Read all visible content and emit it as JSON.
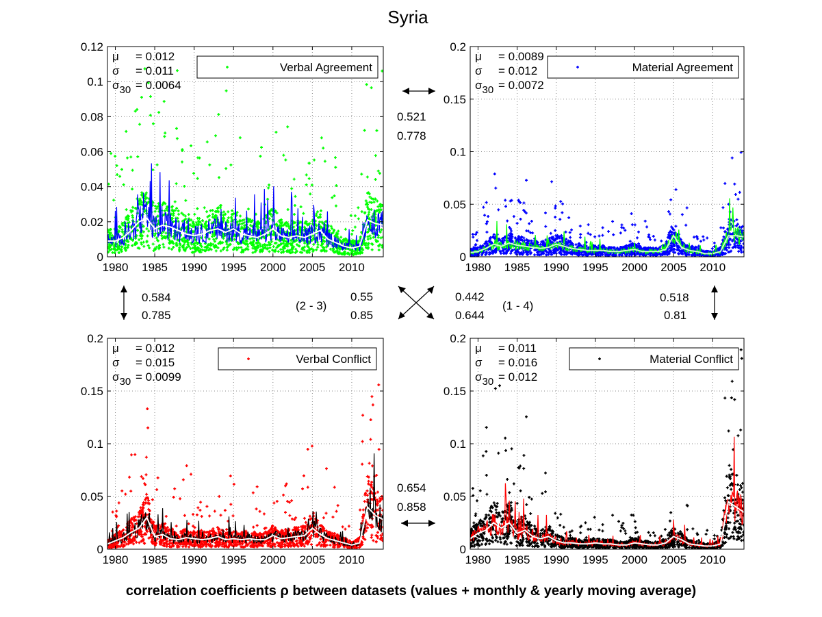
{
  "title": "Syria",
  "footer": {
    "before": "correlation coefficients ",
    "rho": "ρ",
    "after": " between datasets (values + monthly & yearly moving average)"
  },
  "corr": {
    "top": {
      "a": "0.521",
      "b": "0.778"
    },
    "bottom": {
      "a": "0.654",
      "b": "0.858"
    },
    "left": {
      "a": "0.584",
      "b": "0.785"
    },
    "right": {
      "a": "0.518",
      "b": "0.81"
    },
    "diag_23": {
      "label": "(2 - 3)",
      "a": "0.55",
      "b": "0.85"
    },
    "diag_14": {
      "label": "(1 - 4)",
      "a": "0.442",
      "b": "0.644"
    }
  },
  "chart_data": [
    {
      "type": "scatter",
      "id": "va",
      "series_name": "Verbal Agreement",
      "point_color": "#00ff00",
      "line_color": "#0000ff",
      "avg_color": "#ffffff",
      "xlim": [
        1979,
        2014
      ],
      "ylim": [
        0,
        0.12
      ],
      "xticks": [
        "1980",
        "1985",
        "1990",
        "1995",
        "2000",
        "2005",
        "2010"
      ],
      "yticks": [
        "0",
        "0.02",
        "0.04",
        "0.06",
        "0.08",
        "0.1",
        "0.12"
      ],
      "stats": {
        "mu": "= 0.012",
        "sigma": "= 0.011",
        "sigma30": "= 0.0064"
      },
      "yearly_avg": {
        "x": [
          1979,
          1980,
          1981,
          1982,
          1983,
          1984,
          1985,
          1986,
          1987,
          1988,
          1989,
          1990,
          1991,
          1992,
          1993,
          1994,
          1995,
          1996,
          1997,
          1998,
          1999,
          2000,
          2001,
          2002,
          2003,
          2004,
          2005,
          2006,
          2007,
          2008,
          2009,
          2010,
          2011,
          2012,
          2013,
          2014
        ],
        "y": [
          0.009,
          0.009,
          0.011,
          0.015,
          0.02,
          0.022,
          0.016,
          0.018,
          0.017,
          0.015,
          0.013,
          0.012,
          0.013,
          0.015,
          0.016,
          0.014,
          0.016,
          0.013,
          0.012,
          0.011,
          0.013,
          0.016,
          0.012,
          0.011,
          0.012,
          0.011,
          0.013,
          0.015,
          0.01,
          0.008,
          0.006,
          0.005,
          0.006,
          0.021,
          0.019,
          0.018
        ]
      }
    },
    {
      "type": "scatter",
      "id": "ma",
      "series_name": "Material Agreement",
      "point_color": "#0000ff",
      "line_color": "#00ff00",
      "avg_color": "#c8ffc8",
      "xlim": [
        1979,
        2014
      ],
      "ylim": [
        0,
        0.2
      ],
      "xticks": [
        "1980",
        "1985",
        "1990",
        "1995",
        "2000",
        "2005",
        "2010"
      ],
      "yticks": [
        "0",
        "0.05",
        "0.1",
        "0.15",
        "0.2"
      ],
      "stats": {
        "mu": "= 0.0089",
        "sigma": "= 0.012",
        "sigma30": "= 0.0072"
      },
      "yearly_avg": {
        "x": [
          1979,
          1980,
          1981,
          1982,
          1983,
          1984,
          1985,
          1986,
          1987,
          1988,
          1989,
          1990,
          1991,
          1992,
          1993,
          1994,
          1995,
          1996,
          1997,
          1998,
          1999,
          2000,
          2001,
          2002,
          2003,
          2004,
          2005,
          2006,
          2007,
          2008,
          2009,
          2010,
          2011,
          2012,
          2013,
          2014
        ],
        "y": [
          0.004,
          0.005,
          0.008,
          0.012,
          0.01,
          0.013,
          0.011,
          0.01,
          0.009,
          0.008,
          0.009,
          0.012,
          0.01,
          0.008,
          0.007,
          0.006,
          0.006,
          0.006,
          0.005,
          0.005,
          0.006,
          0.007,
          0.005,
          0.005,
          0.005,
          0.007,
          0.02,
          0.009,
          0.006,
          0.005,
          0.003,
          0.003,
          0.005,
          0.02,
          0.02,
          0.019
        ]
      }
    },
    {
      "type": "scatter",
      "id": "vc",
      "series_name": "Verbal Conflict",
      "point_color": "#ff0000",
      "line_color": "#000000",
      "avg_color": "#ffffff",
      "xlim": [
        1979,
        2014
      ],
      "ylim": [
        0,
        0.2
      ],
      "xticks": [
        "1980",
        "1985",
        "1990",
        "1995",
        "2000",
        "2005",
        "2010"
      ],
      "yticks": [
        "0",
        "0.05",
        "0.1",
        "0.15",
        "0.2"
      ],
      "stats": {
        "mu": "= 0.012",
        "sigma": "= 0.015",
        "sigma30": "= 0.0099"
      },
      "yearly_avg": {
        "x": [
          1979,
          1980,
          1981,
          1982,
          1983,
          1984,
          1985,
          1986,
          1987,
          1988,
          1989,
          1990,
          1991,
          1992,
          1993,
          1994,
          1995,
          1996,
          1997,
          1998,
          1999,
          2000,
          2001,
          2002,
          2003,
          2004,
          2005,
          2006,
          2007,
          2008,
          2009,
          2010,
          2011,
          2012,
          2013,
          2014
        ],
        "y": [
          0.005,
          0.008,
          0.011,
          0.016,
          0.02,
          0.03,
          0.012,
          0.014,
          0.01,
          0.009,
          0.011,
          0.01,
          0.009,
          0.01,
          0.012,
          0.009,
          0.01,
          0.009,
          0.01,
          0.009,
          0.009,
          0.013,
          0.01,
          0.011,
          0.012,
          0.013,
          0.02,
          0.014,
          0.01,
          0.008,
          0.006,
          0.004,
          0.006,
          0.04,
          0.032,
          0.028
        ]
      }
    },
    {
      "type": "scatter",
      "id": "mc",
      "series_name": "Material Conflict",
      "point_color": "#000000",
      "line_color": "#ff0000",
      "avg_color": "#ffffff",
      "xlim": [
        1979,
        2014
      ],
      "ylim": [
        0,
        0.2
      ],
      "xticks": [
        "1980",
        "1985",
        "1990",
        "1995",
        "2000",
        "2005",
        "2010"
      ],
      "yticks": [
        "0",
        "0.05",
        "0.1",
        "0.15",
        "0.2"
      ],
      "stats": {
        "mu": "= 0.011",
        "sigma": "= 0.016",
        "sigma30": "= 0.012"
      },
      "yearly_avg": {
        "x": [
          1979,
          1980,
          1981,
          1982,
          1983,
          1984,
          1985,
          1986,
          1987,
          1988,
          1989,
          1990,
          1991,
          1992,
          1993,
          1994,
          1995,
          1996,
          1997,
          1998,
          1999,
          2000,
          2001,
          2002,
          2003,
          2004,
          2005,
          2006,
          2007,
          2008,
          2009,
          2010,
          2011,
          2012,
          2013,
          2014
        ],
        "y": [
          0.01,
          0.015,
          0.018,
          0.025,
          0.02,
          0.025,
          0.015,
          0.018,
          0.012,
          0.01,
          0.012,
          0.008,
          0.006,
          0.006,
          0.005,
          0.005,
          0.006,
          0.005,
          0.005,
          0.004,
          0.004,
          0.006,
          0.005,
          0.004,
          0.004,
          0.006,
          0.012,
          0.009,
          0.005,
          0.004,
          0.003,
          0.003,
          0.005,
          0.045,
          0.04,
          0.035
        ]
      }
    }
  ]
}
